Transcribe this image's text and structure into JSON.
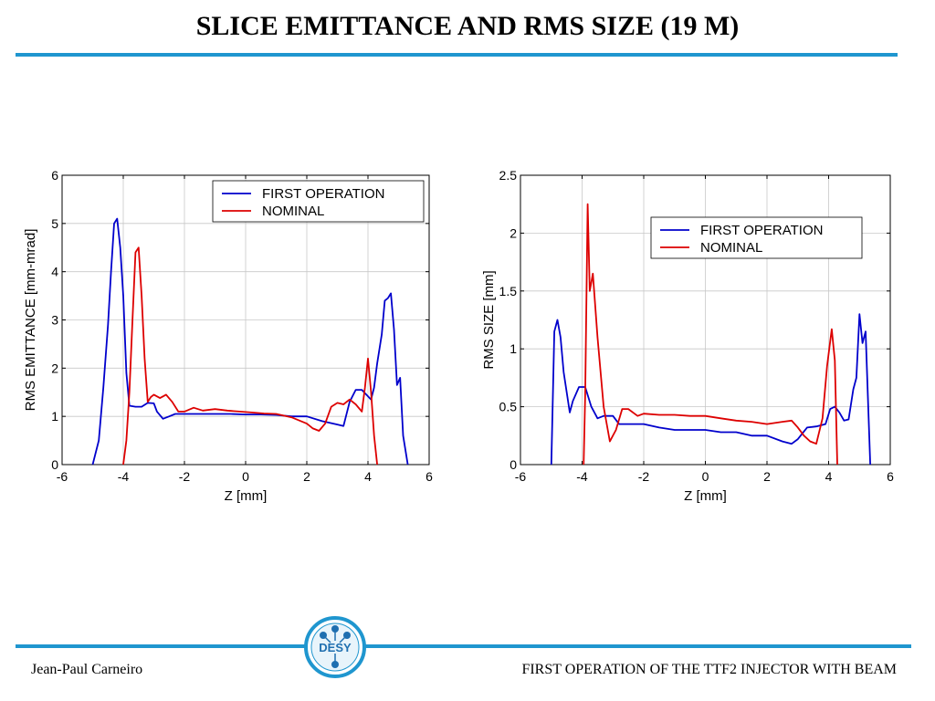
{
  "slide": {
    "title": "SLICE EMITTANCE AND RMS SIZE (19 M)",
    "footer_left": "Jean-Paul Carneiro",
    "footer_right": "FIRST OPERATION OF THE TTF2 INJECTOR WITH BEAM",
    "logo_text": "DESY",
    "accent_color": "#1f96cf"
  },
  "chart_data": [
    {
      "type": "line",
      "xlabel": "Z [mm]",
      "ylabel": "RMS EMITTANCE [mm-mrad]",
      "xlim": [
        -6,
        6
      ],
      "ylim": [
        0,
        6
      ],
      "xticks": [
        "-6",
        "-4",
        "-2",
        "0",
        "2",
        "4",
        "6"
      ],
      "yticks": [
        "0",
        "1",
        "2",
        "3",
        "4",
        "5",
        "6"
      ],
      "grid": true,
      "legend_position": "top-right",
      "series": [
        {
          "name": "FIRST OPERATION",
          "color": "#0000cc",
          "points": [
            [
              -5.0,
              0
            ],
            [
              -4.8,
              0.5
            ],
            [
              -4.65,
              1.6
            ],
            [
              -4.5,
              2.9
            ],
            [
              -4.4,
              4
            ],
            [
              -4.3,
              5.0
            ],
            [
              -4.2,
              5.1
            ],
            [
              -4.1,
              4.5
            ],
            [
              -4.0,
              3.5
            ],
            [
              -3.9,
              1.9
            ],
            [
              -3.8,
              1.22
            ],
            [
              -3.6,
              1.2
            ],
            [
              -3.4,
              1.2
            ],
            [
              -3.2,
              1.28
            ],
            [
              -3.0,
              1.27
            ],
            [
              -2.9,
              1.1
            ],
            [
              -2.7,
              0.95
            ],
            [
              -2.5,
              1.0
            ],
            [
              -2.3,
              1.05
            ],
            [
              -2.0,
              1.05
            ],
            [
              -1.5,
              1.05
            ],
            [
              -1.0,
              1.05
            ],
            [
              -0.5,
              1.05
            ],
            [
              0.0,
              1.04
            ],
            [
              0.5,
              1.04
            ],
            [
              1.0,
              1.03
            ],
            [
              1.5,
              1.0
            ],
            [
              2.0,
              1.0
            ],
            [
              2.5,
              0.9
            ],
            [
              3.0,
              0.83
            ],
            [
              3.2,
              0.8
            ],
            [
              3.4,
              1.3
            ],
            [
              3.6,
              1.55
            ],
            [
              3.8,
              1.55
            ],
            [
              3.9,
              1.48
            ],
            [
              4.1,
              1.35
            ],
            [
              4.2,
              1.6
            ],
            [
              4.3,
              2.1
            ],
            [
              4.45,
              2.7
            ],
            [
              4.55,
              3.4
            ],
            [
              4.65,
              3.45
            ],
            [
              4.75,
              3.55
            ],
            [
              4.85,
              2.8
            ],
            [
              4.95,
              1.65
            ],
            [
              5.05,
              1.8
            ],
            [
              5.15,
              0.6
            ],
            [
              5.3,
              0
            ]
          ]
        },
        {
          "name": "NOMINAL",
          "color": "#dd0000",
          "points": [
            [
              -4.0,
              0
            ],
            [
              -3.9,
              0.5
            ],
            [
              -3.8,
              1.5
            ],
            [
              -3.7,
              3.0
            ],
            [
              -3.6,
              4.4
            ],
            [
              -3.5,
              4.5
            ],
            [
              -3.4,
              3.5
            ],
            [
              -3.3,
              2.2
            ],
            [
              -3.2,
              1.3
            ],
            [
              -3.1,
              1.4
            ],
            [
              -3.0,
              1.45
            ],
            [
              -2.8,
              1.38
            ],
            [
              -2.6,
              1.45
            ],
            [
              -2.4,
              1.3
            ],
            [
              -2.2,
              1.1
            ],
            [
              -2.0,
              1.1
            ],
            [
              -1.7,
              1.18
            ],
            [
              -1.4,
              1.12
            ],
            [
              -1.0,
              1.15
            ],
            [
              -0.6,
              1.12
            ],
            [
              -0.2,
              1.1
            ],
            [
              0.2,
              1.08
            ],
            [
              0.6,
              1.06
            ],
            [
              1.0,
              1.05
            ],
            [
              1.5,
              0.98
            ],
            [
              2.0,
              0.85
            ],
            [
              2.2,
              0.75
            ],
            [
              2.4,
              0.7
            ],
            [
              2.6,
              0.85
            ],
            [
              2.8,
              1.2
            ],
            [
              3.0,
              1.28
            ],
            [
              3.2,
              1.25
            ],
            [
              3.4,
              1.35
            ],
            [
              3.6,
              1.25
            ],
            [
              3.8,
              1.1
            ],
            [
              3.9,
              1.6
            ],
            [
              4.0,
              2.2
            ],
            [
              4.1,
              1.5
            ],
            [
              4.2,
              0.6
            ],
            [
              4.3,
              0
            ]
          ]
        }
      ]
    },
    {
      "type": "line",
      "xlabel": "Z [mm]",
      "ylabel": "RMS SIZE [mm]",
      "xlim": [
        -6,
        6
      ],
      "ylim": [
        0,
        2.5
      ],
      "xticks": [
        "-6",
        "-4",
        "-2",
        "0",
        "2",
        "4",
        "6"
      ],
      "yticks": [
        "0",
        "0.5",
        "1",
        "1.5",
        "2",
        "2.5"
      ],
      "grid": true,
      "legend_position": "top-right",
      "series": [
        {
          "name": "FIRST OPERATION",
          "color": "#0000cc",
          "points": [
            [
              -5.0,
              0
            ],
            [
              -4.9,
              1.15
            ],
            [
              -4.8,
              1.25
            ],
            [
              -4.7,
              1.1
            ],
            [
              -4.6,
              0.8
            ],
            [
              -4.4,
              0.45
            ],
            [
              -4.3,
              0.55
            ],
            [
              -4.1,
              0.67
            ],
            [
              -3.9,
              0.67
            ],
            [
              -3.7,
              0.5
            ],
            [
              -3.5,
              0.4
            ],
            [
              -3.3,
              0.42
            ],
            [
              -3.0,
              0.42
            ],
            [
              -2.8,
              0.35
            ],
            [
              -2.5,
              0.35
            ],
            [
              -2.0,
              0.35
            ],
            [
              -1.5,
              0.32
            ],
            [
              -1.0,
              0.3
            ],
            [
              -0.5,
              0.3
            ],
            [
              0.0,
              0.3
            ],
            [
              0.5,
              0.28
            ],
            [
              1.0,
              0.28
            ],
            [
              1.5,
              0.25
            ],
            [
              2.0,
              0.25
            ],
            [
              2.5,
              0.2
            ],
            [
              2.8,
              0.18
            ],
            [
              3.0,
              0.22
            ],
            [
              3.3,
              0.32
            ],
            [
              3.6,
              0.33
            ],
            [
              3.9,
              0.35
            ],
            [
              4.05,
              0.48
            ],
            [
              4.2,
              0.5
            ],
            [
              4.35,
              0.45
            ],
            [
              4.5,
              0.38
            ],
            [
              4.65,
              0.39
            ],
            [
              4.8,
              0.65
            ],
            [
              4.9,
              0.75
            ],
            [
              5.0,
              1.3
            ],
            [
              5.1,
              1.05
            ],
            [
              5.2,
              1.15
            ],
            [
              5.35,
              0
            ]
          ]
        },
        {
          "name": "NOMINAL",
          "color": "#dd0000",
          "points": [
            [
              -3.95,
              0
            ],
            [
              -3.9,
              0.6
            ],
            [
              -3.82,
              2.25
            ],
            [
              -3.75,
              1.5
            ],
            [
              -3.65,
              1.65
            ],
            [
              -3.5,
              1.1
            ],
            [
              -3.3,
              0.5
            ],
            [
              -3.1,
              0.2
            ],
            [
              -2.9,
              0.3
            ],
            [
              -2.7,
              0.48
            ],
            [
              -2.5,
              0.48
            ],
            [
              -2.2,
              0.42
            ],
            [
              -2.0,
              0.44
            ],
            [
              -1.5,
              0.43
            ],
            [
              -1.0,
              0.43
            ],
            [
              -0.5,
              0.42
            ],
            [
              0.0,
              0.42
            ],
            [
              0.5,
              0.4
            ],
            [
              1.0,
              0.38
            ],
            [
              1.5,
              0.37
            ],
            [
              2.0,
              0.35
            ],
            [
              2.5,
              0.37
            ],
            [
              2.8,
              0.38
            ],
            [
              3.0,
              0.32
            ],
            [
              3.2,
              0.25
            ],
            [
              3.4,
              0.2
            ],
            [
              3.6,
              0.18
            ],
            [
              3.8,
              0.4
            ],
            [
              3.95,
              0.85
            ],
            [
              4.1,
              1.17
            ],
            [
              4.2,
              0.9
            ],
            [
              4.28,
              0
            ]
          ]
        }
      ]
    }
  ]
}
